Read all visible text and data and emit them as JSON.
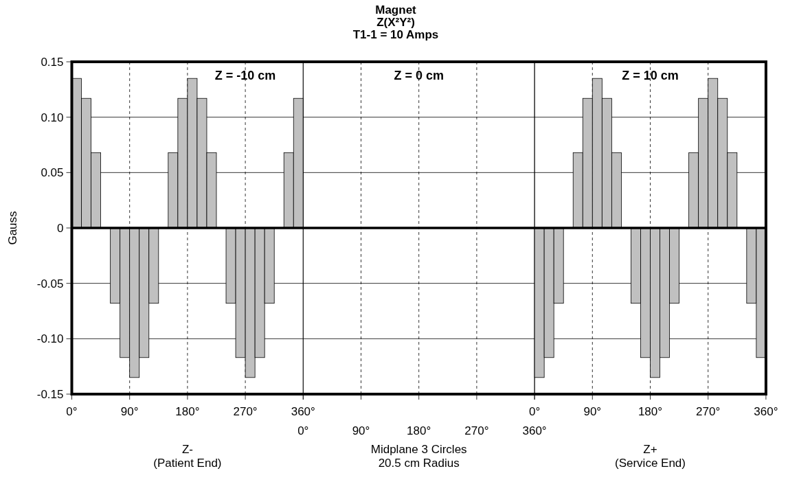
{
  "chart_data": [
    {
      "type": "bar",
      "title": "Z = -10 cm",
      "annotations": [
        "Magnet",
        "Z(X²Y²)",
        "T1-1 = 10 Amps"
      ],
      "xlabel": "Z-\n(Patient End)",
      "ylabel": "Gauss",
      "color": "#c0c0c0",
      "grid": true,
      "x": [
        7.5,
        22.5,
        37.5,
        52.5,
        67.5,
        82.5,
        97.5,
        112.5,
        127.5,
        142.5,
        157.5,
        172.5,
        187.5,
        202.5,
        217.5,
        232.5,
        247.5,
        262.5,
        277.5,
        292.5,
        307.5,
        322.5,
        337.5,
        352.5
      ],
      "values": [
        0.135,
        0.117,
        0.068,
        0,
        -0.068,
        -0.117,
        -0.135,
        -0.117,
        -0.068,
        0,
        0.068,
        0.117,
        0.135,
        0.117,
        0.068,
        0,
        -0.068,
        -0.117,
        -0.135,
        -0.117,
        -0.068,
        0,
        0.068,
        0.117
      ],
      "xlim": [
        0,
        360
      ],
      "xticks": [
        {
          "value": 0,
          "label": "0°"
        },
        {
          "value": 90,
          "label": "90°"
        },
        {
          "value": 180,
          "label": "180°"
        },
        {
          "value": 270,
          "label": "270°"
        },
        {
          "value": 360,
          "label": "360°"
        }
      ],
      "ylim": [
        -0.15,
        0.15
      ],
      "yticks": [
        {
          "value": -0.15,
          "label": "-0.15"
        },
        {
          "value": -0.1,
          "label": "-0.10"
        },
        {
          "value": -0.05,
          "label": "-0.05"
        },
        0,
        {
          "value": 0.05,
          "label": "0.05"
        },
        {
          "value": 0.1,
          "label": "0.10"
        },
        {
          "value": 0.15,
          "label": "0.15"
        }
      ]
    },
    {
      "type": "bar",
      "title": "Z = 0 cm",
      "xlabel": "Midplane 3 Circles\n20.5 cm Radius",
      "color": "#c0c0c0",
      "grid": true,
      "tick_labels": "x",
      "x": [
        7.5,
        22.5,
        37.5,
        52.5,
        67.5,
        82.5,
        97.5,
        112.5,
        127.5,
        142.5,
        157.5,
        172.5,
        187.5,
        202.5,
        217.5,
        232.5,
        247.5,
        262.5,
        277.5,
        292.5,
        307.5,
        322.5,
        337.5,
        352.5
      ],
      "values": [
        0,
        0,
        0,
        0,
        0,
        0,
        0,
        0,
        0,
        0,
        0,
        0,
        0,
        0,
        0,
        0,
        0,
        0,
        0,
        0,
        0,
        0,
        0,
        0
      ],
      "xlim": [
        0,
        360
      ],
      "xticks": [
        {
          "value": 0,
          "label": "0°"
        },
        {
          "value": 90,
          "label": "90°"
        },
        {
          "value": 180,
          "label": "180°"
        },
        {
          "value": 270,
          "label": "270°"
        },
        {
          "value": 360,
          "label": "360°"
        }
      ],
      "ylim": [
        -0.15,
        0.15
      ],
      "yticks": [
        {
          "value": -0.15,
          "label": null
        },
        {
          "value": -0.1,
          "label": null
        },
        {
          "value": -0.05,
          "label": null
        },
        {
          "value": 0,
          "label": null
        },
        {
          "value": 0.05,
          "label": null
        },
        {
          "value": 0.1,
          "label": null
        },
        {
          "value": 0.15,
          "label": null
        }
      ]
    },
    {
      "type": "bar",
      "title": "Z = 10 cm",
      "xlabel": "Z+\n(Service End)",
      "color": "#c0c0c0",
      "grid": true,
      "tick_labels": "x",
      "x": [
        7.5,
        22.5,
        37.5,
        52.5,
        67.5,
        82.5,
        97.5,
        112.5,
        127.5,
        142.5,
        157.5,
        172.5,
        187.5,
        202.5,
        217.5,
        232.5,
        247.5,
        262.5,
        277.5,
        292.5,
        307.5,
        322.5,
        337.5,
        352.5
      ],
      "values": [
        -0.135,
        -0.117,
        -0.068,
        0,
        0.068,
        0.117,
        0.135,
        0.117,
        0.068,
        0,
        -0.068,
        -0.117,
        -0.135,
        -0.117,
        -0.068,
        0,
        0.068,
        0.117,
        0.135,
        0.117,
        0.068,
        0,
        -0.068,
        -0.117
      ],
      "xlim": [
        0,
        360
      ],
      "xticks": [
        {
          "value": 0,
          "label": "0°"
        },
        {
          "value": 90,
          "label": "90°"
        },
        {
          "value": 180,
          "label": "180°"
        },
        {
          "value": 270,
          "label": "270°"
        },
        {
          "value": 360,
          "label": "360°"
        }
      ],
      "ylim": [
        -0.15,
        0.15
      ],
      "yticks": [
        {
          "value": -0.15,
          "label": null
        },
        {
          "value": -0.1,
          "label": null
        },
        {
          "value": -0.05,
          "label": null
        },
        {
          "value": 0,
          "label": null
        },
        {
          "value": 0.05,
          "label": null
        },
        {
          "value": 0.1,
          "label": null
        },
        {
          "value": 0.15,
          "label": null
        }
      ]
    }
  ]
}
